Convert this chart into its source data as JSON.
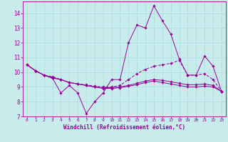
{
  "xlabel": "Windchill (Refroidissement éolien,°C)",
  "background_color": "#c8ecec",
  "line_color": "#990099",
  "grid_color": "#aadddd",
  "xlim": [
    -0.5,
    23.5
  ],
  "ylim": [
    7.0,
    14.8
  ],
  "yticks": [
    7,
    8,
    9,
    10,
    11,
    12,
    13,
    14
  ],
  "xticks": [
    0,
    1,
    2,
    3,
    4,
    5,
    6,
    7,
    8,
    9,
    10,
    11,
    12,
    13,
    14,
    15,
    16,
    17,
    18,
    19,
    20,
    21,
    22,
    23
  ],
  "line1_x": [
    0,
    1,
    2,
    3,
    4,
    5,
    6,
    7,
    8,
    9,
    10,
    11,
    12,
    13,
    14,
    15,
    16,
    17,
    18,
    19,
    20,
    21,
    22,
    23
  ],
  "line1_y": [
    10.5,
    10.1,
    9.8,
    9.6,
    8.6,
    9.1,
    8.6,
    7.2,
    8.0,
    8.6,
    9.5,
    9.5,
    12.0,
    13.2,
    13.0,
    14.5,
    13.5,
    12.6,
    10.9,
    9.8,
    9.8,
    11.1,
    10.4,
    8.7
  ],
  "line2_x": [
    0,
    1,
    2,
    3,
    4,
    5,
    6,
    7,
    8,
    9,
    10,
    11,
    12,
    13,
    14,
    15,
    16,
    17,
    18,
    19,
    20,
    21,
    22,
    23
  ],
  "line2_y": [
    10.5,
    10.1,
    9.8,
    9.7,
    9.5,
    9.3,
    9.2,
    9.15,
    9.05,
    9.0,
    9.0,
    9.1,
    9.5,
    9.9,
    10.2,
    10.4,
    10.5,
    10.6,
    10.8,
    9.8,
    9.8,
    9.9,
    9.5,
    8.7
  ],
  "line3_x": [
    0,
    1,
    2,
    3,
    4,
    5,
    6,
    7,
    8,
    9,
    10,
    11,
    12,
    13,
    14,
    15,
    16,
    17,
    18,
    19,
    20,
    21,
    22,
    23
  ],
  "line3_y": [
    10.5,
    10.1,
    9.8,
    9.65,
    9.5,
    9.3,
    9.2,
    9.1,
    9.0,
    8.95,
    8.95,
    9.0,
    9.1,
    9.25,
    9.4,
    9.5,
    9.45,
    9.35,
    9.25,
    9.15,
    9.15,
    9.2,
    9.1,
    8.7
  ],
  "line4_x": [
    0,
    1,
    2,
    3,
    4,
    5,
    6,
    7,
    8,
    9,
    10,
    11,
    12,
    13,
    14,
    15,
    16,
    17,
    18,
    19,
    20,
    21,
    22,
    23
  ],
  "line4_y": [
    10.5,
    10.1,
    9.8,
    9.6,
    9.5,
    9.3,
    9.2,
    9.1,
    9.0,
    8.9,
    8.9,
    8.95,
    9.05,
    9.15,
    9.3,
    9.4,
    9.3,
    9.2,
    9.1,
    9.0,
    9.0,
    9.05,
    9.0,
    8.7
  ]
}
